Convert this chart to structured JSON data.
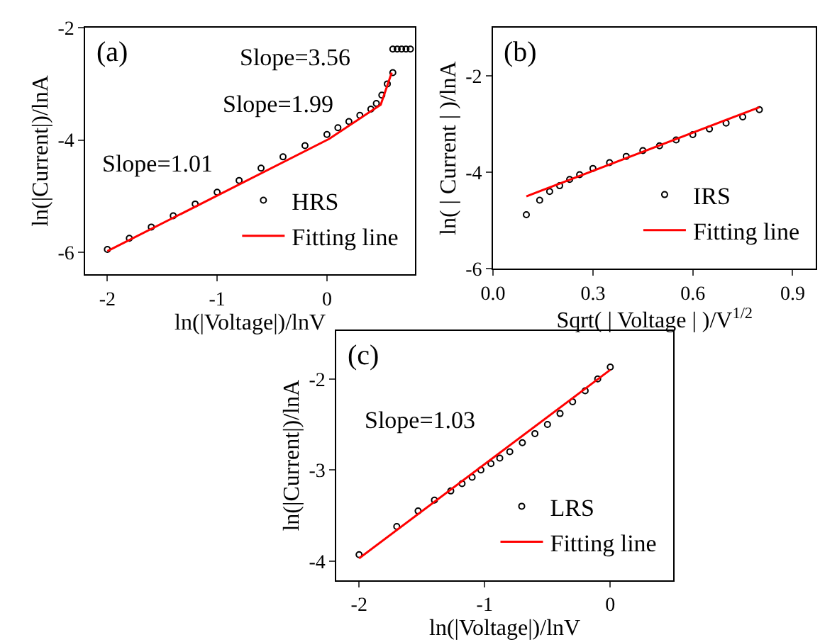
{
  "chart_data": [
    {
      "type": "scatter",
      "xlabel": "ln(|Voltage|)/lnV",
      "ylabel": "ln(|Current|)/lnA",
      "xlim": [
        -2.2,
        0.8
      ],
      "ylim": [
        -6.39,
        -2
      ],
      "xticks": [
        -2,
        -1,
        0
      ],
      "yticks": [
        -2,
        -4,
        -6
      ],
      "legend": "bottom right",
      "annotations": [
        "(a)",
        "Slope=3.56",
        "Slope=1.99",
        "Slope=1.01"
      ],
      "series": [
        {
          "name": "HRS",
          "marker": "circle",
          "color": "#000000",
          "x": [
            -2,
            -1.8,
            -1.6,
            -1.4,
            -1.2,
            -1,
            -0.8,
            -0.6,
            -0.4,
            -0.2,
            0,
            0.1,
            0.2,
            0.3,
            0.4,
            0.45,
            0.5,
            0.55,
            0.6,
            0.6,
            0.64,
            0.68,
            0.72,
            0.76
          ],
          "values": [
            -5.95,
            -5.75,
            -5.55,
            -5.35,
            -5.14,
            -4.93,
            -4.72,
            -4.5,
            -4.3,
            -4.1,
            -3.9,
            -3.78,
            -3.67,
            -3.56,
            -3.45,
            -3.35,
            -3.2,
            -3.0,
            -2.8,
            -2.38,
            -2.38,
            -2.38,
            -2.38,
            -2.38
          ]
        },
        {
          "name": "Fitting line",
          "type": "line",
          "marker": "none",
          "color": "#ff0000",
          "x": [
            -2,
            0.02,
            0.49,
            0.59
          ],
          "values": [
            -5.98,
            -3.98,
            -3.37,
            -2.8
          ]
        }
      ]
    },
    {
      "type": "scatter",
      "xlabel": "Sqrt( | Voltage | )/V$^{1/2}$",
      "ylabel": "ln( | Current | )/lnA",
      "xlim": [
        0,
        0.97
      ],
      "ylim": [
        -6,
        -1
      ],
      "xticks": [
        {
          "value": 0,
          "label": "0.0"
        },
        0.3,
        0.6,
        0.9
      ],
      "yticks": [
        -2,
        -4,
        -6
      ],
      "legend": "bottom right",
      "annotations": [
        "(b)"
      ],
      "series": [
        {
          "name": "IRS",
          "marker": "circle",
          "color": "#000000",
          "x": [
            0.1,
            0.14,
            0.17,
            0.2,
            0.23,
            0.26,
            0.3,
            0.35,
            0.4,
            0.45,
            0.5,
            0.55,
            0.6,
            0.65,
            0.7,
            0.75,
            0.8
          ],
          "values": [
            -4.88,
            -4.58,
            -4.4,
            -4.28,
            -4.15,
            -4.05,
            -3.92,
            -3.8,
            -3.67,
            -3.55,
            -3.45,
            -3.33,
            -3.22,
            -3.1,
            -2.98,
            -2.85,
            -2.7
          ]
        },
        {
          "name": "Fitting line",
          "type": "line",
          "marker": "none",
          "color": "#ff0000",
          "x": [
            0.1,
            0.8
          ],
          "values": [
            -4.5,
            -2.65
          ]
        }
      ]
    },
    {
      "type": "scatter",
      "xlabel": "ln(|Voltage|)/lnV",
      "ylabel": "ln(|Current|)/lnA",
      "xlim": [
        -2.18,
        0.5
      ],
      "ylim": [
        -4.21,
        -1.47
      ],
      "xticks": [
        -2,
        -1,
        0
      ],
      "yticks": [
        -2,
        -3,
        -4
      ],
      "legend": "bottom right",
      "annotations": [
        "(c)",
        "Slope=1.03"
      ],
      "series": [
        {
          "name": "LRS",
          "marker": "circle",
          "color": "#000000",
          "x": [
            -2,
            -1.7,
            -1.53,
            -1.4,
            -1.27,
            -1.18,
            -1.1,
            -1.03,
            -0.95,
            -0.88,
            -0.8,
            -0.7,
            -0.6,
            -0.5,
            -0.4,
            -0.3,
            -0.2,
            -0.1,
            0
          ],
          "values": [
            -3.93,
            -3.62,
            -3.45,
            -3.33,
            -3.23,
            -3.15,
            -3.08,
            -3.0,
            -2.93,
            -2.87,
            -2.8,
            -2.7,
            -2.6,
            -2.5,
            -2.38,
            -2.25,
            -2.13,
            -2.0,
            -1.87
          ]
        },
        {
          "name": "Fitting line",
          "type": "line",
          "marker": "none",
          "color": "#ff0000",
          "x": [
            -2,
            0
          ],
          "values": [
            -3.97,
            -1.9
          ]
        }
      ]
    }
  ]
}
